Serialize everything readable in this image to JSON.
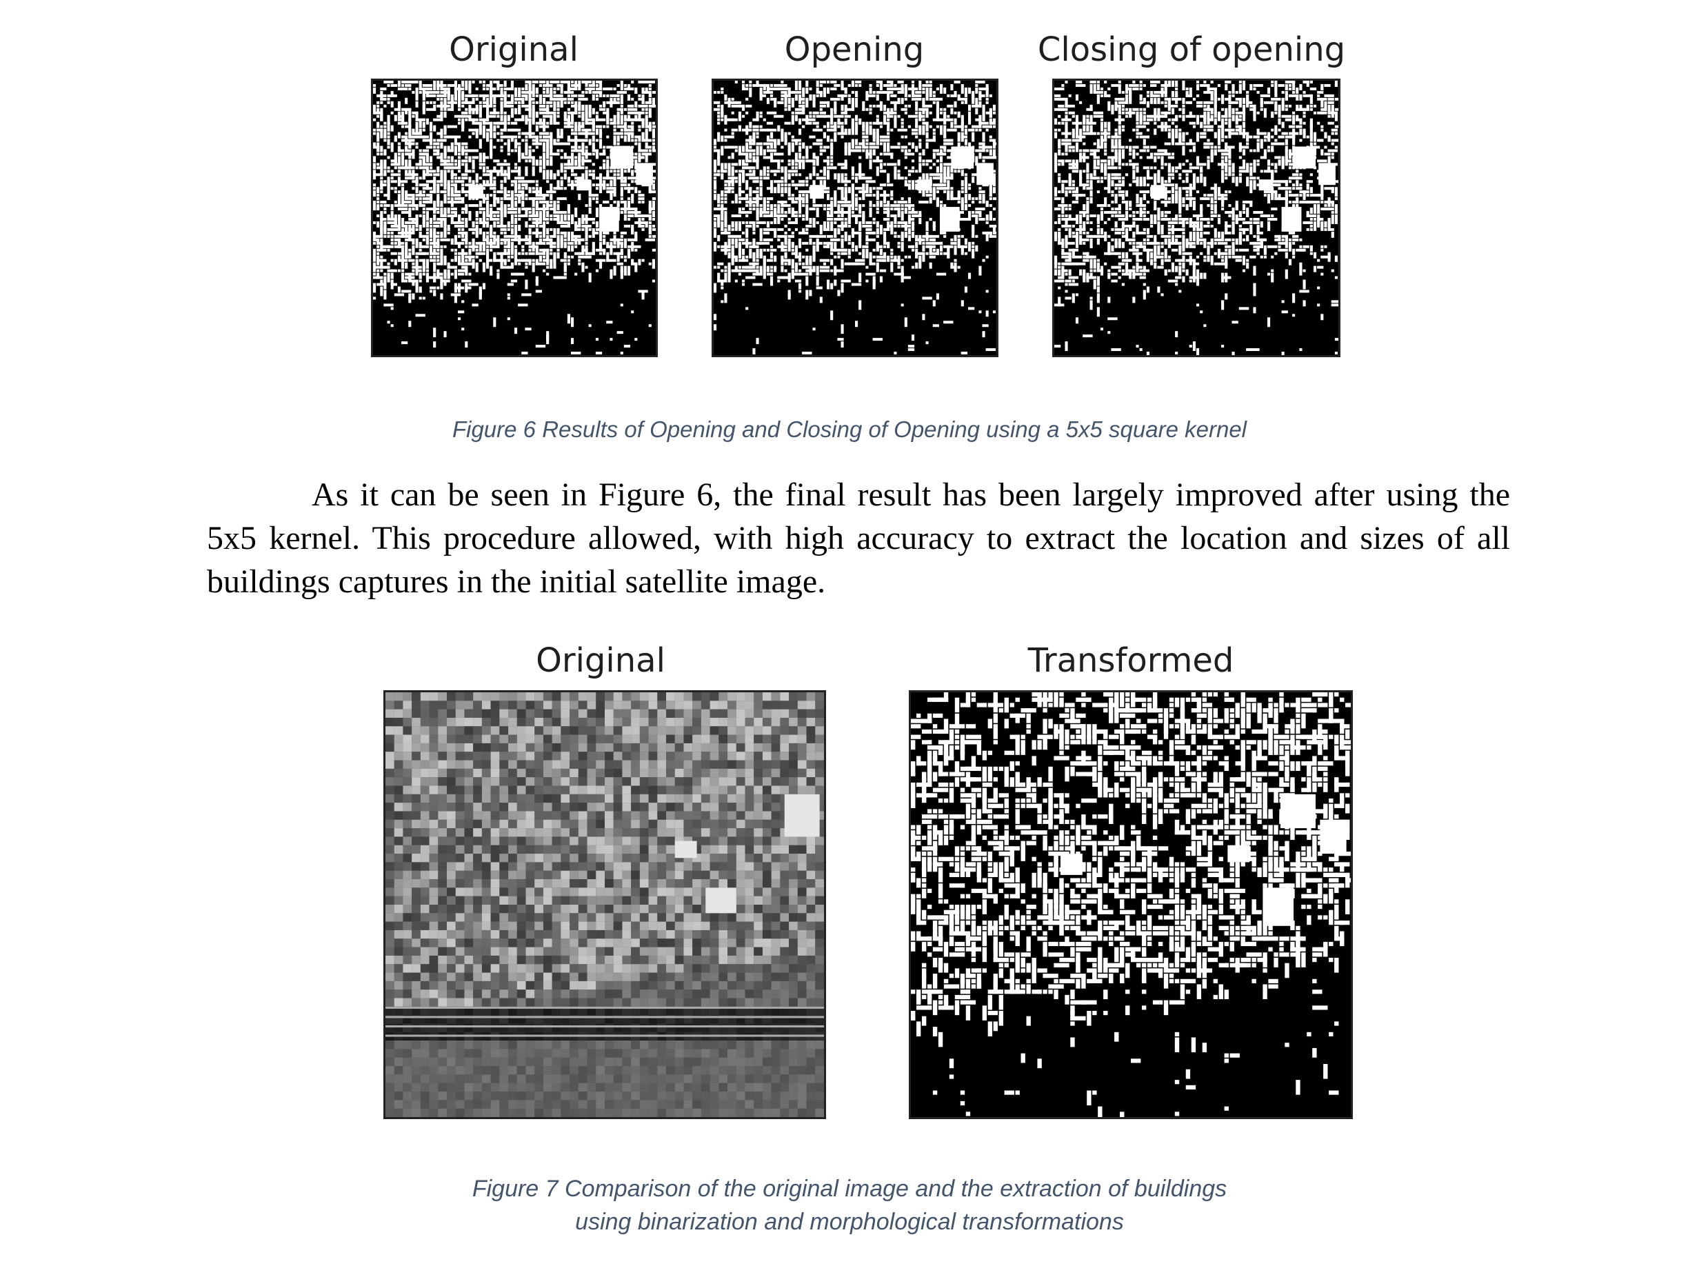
{
  "figure6": {
    "panels": [
      {
        "title": "Original",
        "style": "binary-dense"
      },
      {
        "title": "Opening",
        "style": "binary-opened"
      },
      {
        "title": "Closing of opening",
        "style": "binary-closed"
      }
    ],
    "caption": "Figure 6 Results of Opening and Closing of Opening using a 5x5 square kernel"
  },
  "paragraph": {
    "lines": [
      "As it can be seen in Figure 6, the final result has been largely improved after using the",
      "5x5 kernel. This procedure allowed, with high accuracy to extract the location and sizes of all",
      "buildings captures in the initial satellite image."
    ]
  },
  "figure7": {
    "panels": [
      {
        "title": "Original",
        "style": "grayscale-satellite"
      },
      {
        "title": "Transformed",
        "style": "binary-large"
      }
    ],
    "caption_lines": [
      "Figure 7 Comparison of the original image and the extraction of buildings",
      "using binarization and morphological transformations"
    ]
  },
  "colors": {
    "caption": "#44546a",
    "text": "#000000",
    "image_background": "#000000",
    "image_foreground": "#ffffff"
  }
}
